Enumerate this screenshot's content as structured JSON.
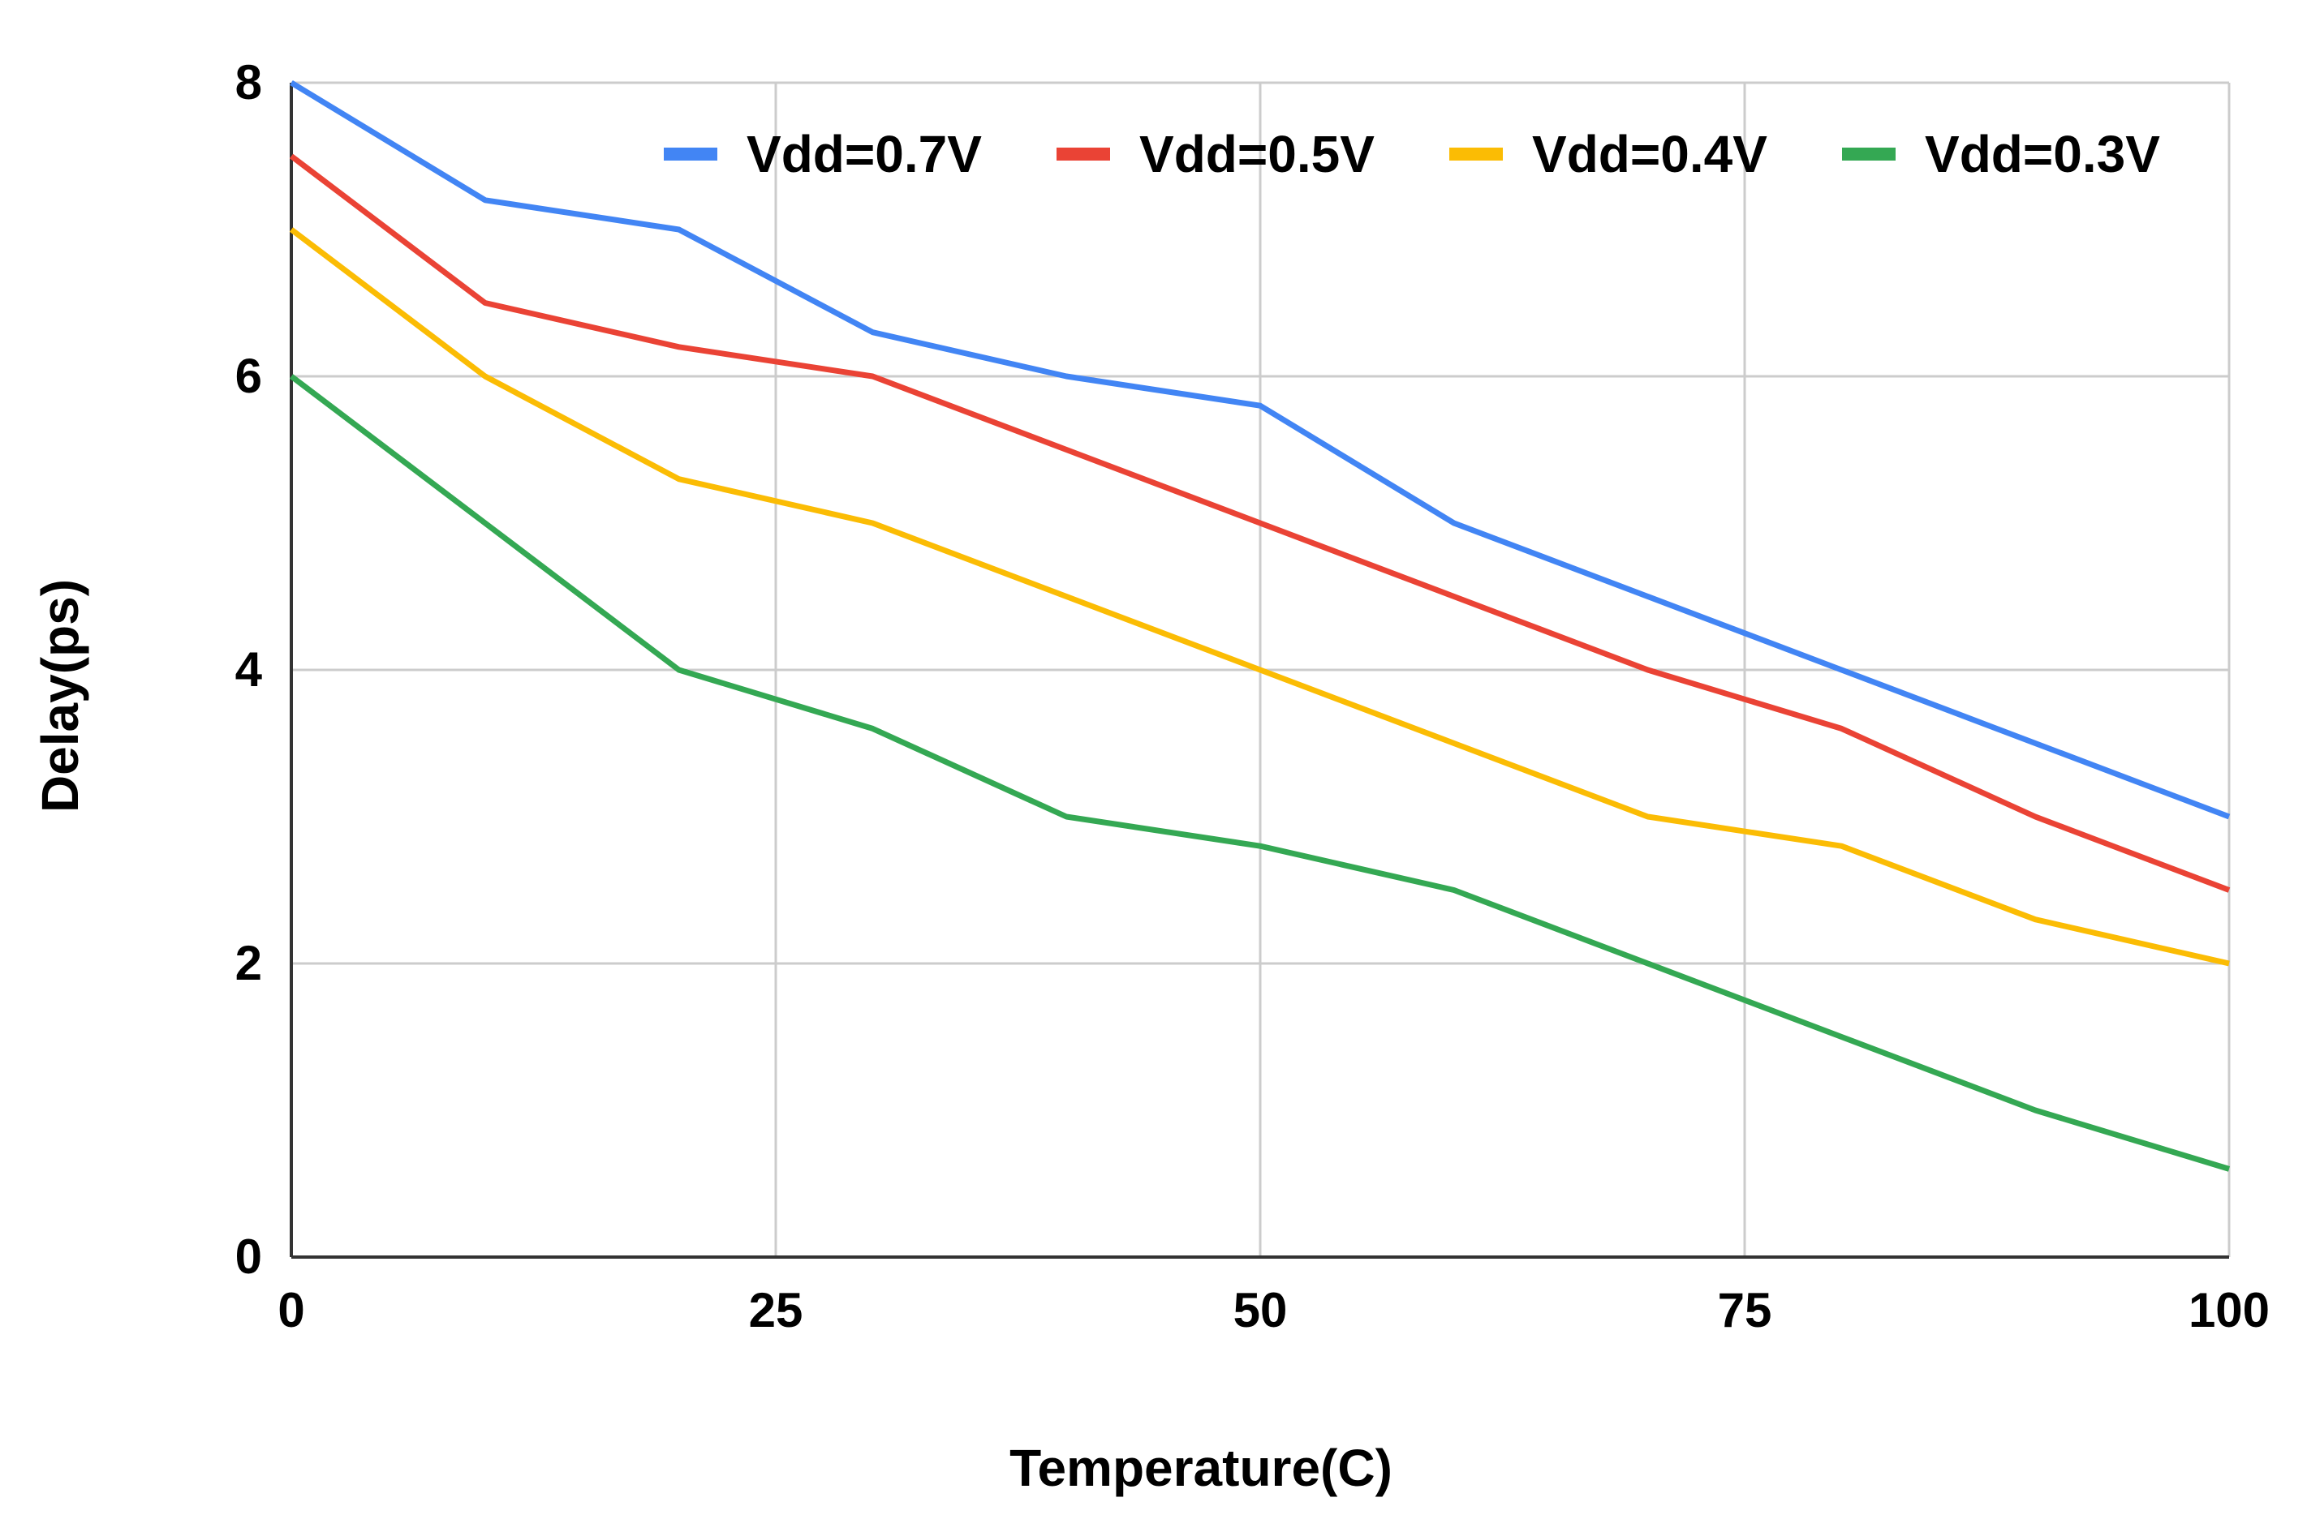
{
  "chart_data": {
    "type": "line",
    "title": "",
    "xlabel": "Temperature(C)",
    "ylabel": "Delay(ps)",
    "xlim": [
      0,
      100
    ],
    "ylim": [
      0,
      8
    ],
    "xticks": [
      0,
      25,
      50,
      75,
      100
    ],
    "yticks": [
      0,
      2,
      4,
      6,
      8
    ],
    "xtick_labels": [
      "0",
      "25",
      "50",
      "75",
      "100"
    ],
    "ytick_labels": [
      "0",
      "2",
      "4",
      "6",
      "8"
    ],
    "grid": true,
    "legend_position": "top-right",
    "x": [
      0,
      10,
      20,
      30,
      40,
      50,
      60,
      70,
      80,
      90,
      100
    ],
    "series": [
      {
        "name": "Vdd=0.7V",
        "color": "#4285F4",
        "values": [
          8.0,
          7.2,
          7.0,
          6.3,
          6.0,
          5.8,
          5.0,
          4.5,
          4.0,
          3.5,
          3.0
        ]
      },
      {
        "name": "Vdd=0.5V",
        "color": "#EA4335",
        "values": [
          7.5,
          6.5,
          6.2,
          6.0,
          5.5,
          5.0,
          4.5,
          4.0,
          3.6,
          3.0,
          2.5
        ]
      },
      {
        "name": "Vdd=0.4V",
        "color": "#FBBC04",
        "values": [
          7.0,
          6.0,
          5.3,
          5.0,
          4.5,
          4.0,
          3.5,
          3.0,
          2.8,
          2.3,
          2.0
        ]
      },
      {
        "name": "Vdd=0.3V",
        "color": "#34A853",
        "values": [
          6.0,
          5.0,
          4.0,
          3.6,
          3.0,
          2.8,
          2.5,
          2.0,
          1.5,
          1.0,
          0.6
        ]
      }
    ]
  }
}
